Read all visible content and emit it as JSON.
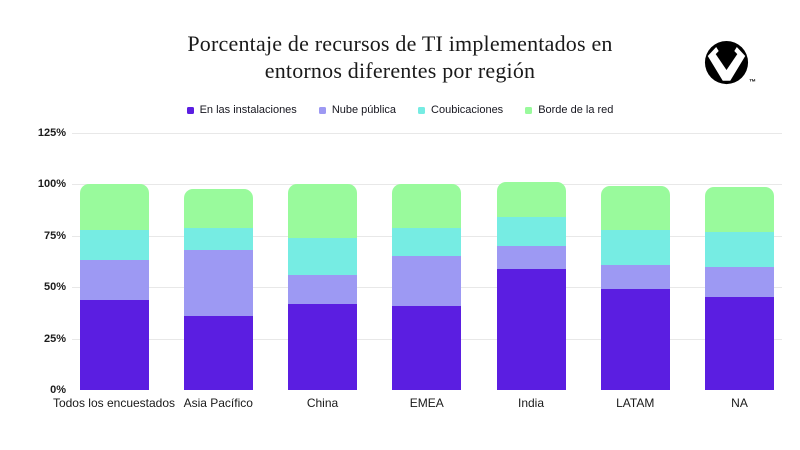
{
  "page": {
    "background": "#ffffff"
  },
  "header": {
    "title": "Porcentaje de recursos de TI implementados en\nentornos diferentes por región",
    "logo": {
      "label": "vertiv-mark",
      "trademark": "™",
      "color": "#000000"
    }
  },
  "chart_data": {
    "type": "bar",
    "stacked": true,
    "title": "Porcentaje de recursos de TI implementados en entornos diferentes por región",
    "xlabel": "",
    "ylabel": "",
    "ylim": [
      0,
      125
    ],
    "yticks": [
      "0%",
      "25%",
      "50%",
      "75%",
      "100%",
      "125%"
    ],
    "grid": true,
    "legend_position": "top",
    "categories": [
      "Todos los encuestados",
      "Asia Pacífico",
      "China",
      "EMEA",
      "India",
      "LATAM",
      "NA"
    ],
    "series": [
      {
        "name": "En las instalaciones",
        "color": "#5b1ee1",
        "values": [
          44,
          36,
          42,
          41,
          59,
          49,
          45
        ]
      },
      {
        "name": "Nube pública",
        "color": "#9d99f3",
        "values": [
          19,
          32,
          14,
          24,
          11,
          12,
          15
        ]
      },
      {
        "name": "Coubicaciones",
        "color": "#76ece3",
        "values": [
          15,
          11,
          18,
          14,
          14,
          17,
          17
        ]
      },
      {
        "name": "Borde de la red",
        "color": "#99fa9c",
        "values": [
          22,
          19,
          26,
          21,
          17,
          21,
          22
        ]
      }
    ],
    "colors": {
      "gridline": "#e8e8e8",
      "axis_text": "#1c1c1c",
      "title_text": "#1a1a1a"
    }
  }
}
